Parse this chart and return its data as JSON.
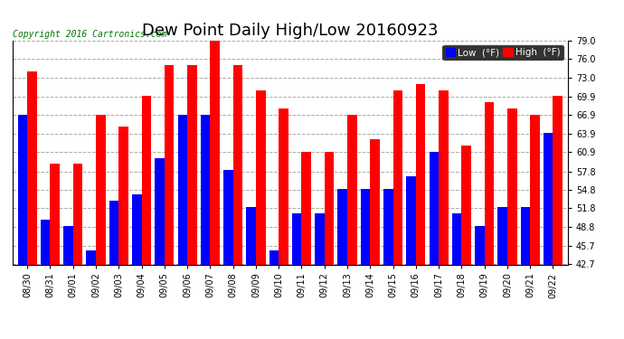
{
  "title": "Dew Point Daily High/Low 20160923",
  "copyright_text": "Copyright 2016 Cartronics.com",
  "dates": [
    "08/30",
    "08/31",
    "09/01",
    "09/02",
    "09/03",
    "09/04",
    "09/05",
    "09/06",
    "09/07",
    "09/08",
    "09/09",
    "09/10",
    "09/11",
    "09/12",
    "09/13",
    "09/14",
    "09/15",
    "09/16",
    "09/17",
    "09/18",
    "09/19",
    "09/20",
    "09/21",
    "09/22"
  ],
  "low_values": [
    67,
    50,
    49,
    45,
    53,
    54,
    60,
    67,
    67,
    58,
    52,
    45,
    51,
    51,
    55,
    55,
    55,
    57,
    61,
    51,
    49,
    52,
    52,
    64
  ],
  "high_values": [
    74,
    59,
    59,
    67,
    65,
    70,
    75,
    75,
    79,
    75,
    71,
    68,
    61,
    61,
    67,
    63,
    71,
    72,
    71,
    62,
    69,
    68,
    67,
    70
  ],
  "low_color": "#0000FF",
  "high_color": "#FF0000",
  "bg_color": "#FFFFFF",
  "plot_bg_color": "#FFFFFF",
  "grid_color": "#AAAAAA",
  "ylim_min": 42.7,
  "ylim_max": 79.0,
  "yticks": [
    42.7,
    45.7,
    48.8,
    51.8,
    54.8,
    57.8,
    60.9,
    63.9,
    66.9,
    69.9,
    73.0,
    76.0,
    79.0
  ],
  "title_fontsize": 13,
  "tick_fontsize": 7,
  "copyright_fontsize": 7,
  "legend_fontsize": 7.5,
  "bar_width": 0.42
}
